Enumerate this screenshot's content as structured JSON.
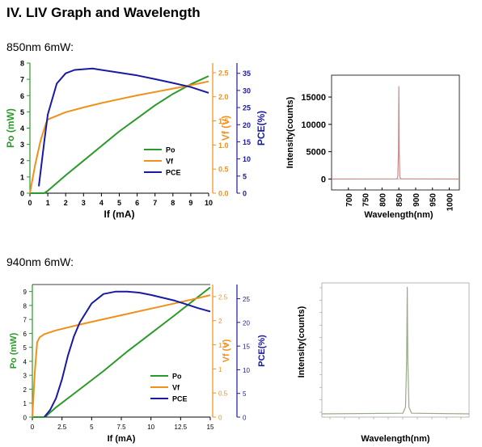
{
  "heading": "IV. LIV Graph and Wavelength",
  "sections": [
    {
      "subtitle": "850nm 6mW:"
    },
    {
      "subtitle": "940nm 6mW:"
    }
  ],
  "colors": {
    "po": "#2a9a2a",
    "vf": "#f0901a",
    "pce": "#1a1aa0",
    "spectrum": "#c98a8a",
    "spectrum2": "#9aa98a"
  },
  "chart_data": [
    {
      "type": "line",
      "xlabel": "If (mA)",
      "xlim": [
        0,
        10
      ],
      "xticks": [
        "0",
        "1",
        "2",
        "3",
        "4",
        "5",
        "6",
        "7",
        "8",
        "9",
        "10"
      ],
      "legend": [
        "Po",
        "Vf",
        "PCE"
      ],
      "legend_position": "center-right",
      "series": [
        {
          "name": "Po",
          "axis": "Po (mW)",
          "ylim": [
            0,
            8
          ],
          "ticks": [
            "0",
            "1",
            "2",
            "3",
            "4",
            "5",
            "6",
            "7",
            "8"
          ],
          "x": [
            0,
            0.8,
            1,
            2,
            3,
            4,
            5,
            6,
            7,
            8,
            9,
            10
          ],
          "values": [
            0,
            0,
            0.15,
            1.1,
            2.0,
            2.9,
            3.8,
            4.6,
            5.4,
            6.1,
            6.7,
            7.2
          ]
        },
        {
          "name": "Vf",
          "axis": "Vf (V)",
          "ylim": [
            0,
            2.7
          ],
          "ticks": [
            "0.0",
            "0.5",
            "1.0",
            "1.5",
            "2.0",
            "2.5"
          ],
          "x": [
            0,
            0.3,
            0.6,
            0.9,
            1,
            2,
            3,
            4,
            5,
            6,
            7,
            8,
            9,
            10
          ],
          "values": [
            0,
            0.6,
            1.1,
            1.45,
            1.53,
            1.68,
            1.78,
            1.87,
            1.95,
            2.03,
            2.1,
            2.17,
            2.24,
            2.32
          ]
        },
        {
          "name": "PCE",
          "axis": "PCE(%)",
          "ylim": [
            0,
            38
          ],
          "ticks": [
            "0",
            "5",
            "10",
            "15",
            "20",
            "25",
            "30",
            "35"
          ],
          "x": [
            0.5,
            0.8,
            1,
            1.5,
            2,
            2.5,
            3,
            3.5,
            4,
            5,
            6,
            7,
            8,
            9,
            10
          ],
          "values": [
            2,
            15,
            23,
            32,
            35,
            36,
            36.2,
            36.4,
            36,
            35.2,
            34.4,
            33.3,
            32.2,
            31,
            29.3
          ]
        }
      ]
    },
    {
      "type": "line",
      "xlabel": "Wavelength(nm)",
      "ylabel": "Intensity(counts)",
      "xlim": [
        650,
        1030
      ],
      "ylim": [
        -2000,
        19000
      ],
      "xticks": [
        "700",
        "750",
        "800",
        "850",
        "900",
        "950",
        "1000"
      ],
      "yticks": [
        "0",
        "5000",
        "10000",
        "15000"
      ],
      "peak": {
        "x": 850,
        "y": 17000
      }
    },
    {
      "type": "line",
      "xlabel": "If (mA)",
      "xlim": [
        0,
        15
      ],
      "xticks": [
        "0",
        "2.5",
        "5",
        "7.5",
        "10",
        "12.5",
        "15"
      ],
      "legend": [
        "Po",
        "Vf",
        "PCE"
      ],
      "legend_position": "center-right",
      "series": [
        {
          "name": "Po",
          "axis": "Po (mW)",
          "ylim": [
            0,
            9.5
          ],
          "ticks": [
            "0",
            "1",
            "2",
            "3",
            "4",
            "5",
            "6",
            "7",
            "8",
            "9"
          ],
          "x": [
            0,
            1,
            1.2,
            2,
            4,
            6,
            8,
            10,
            12,
            13.5,
            15
          ],
          "values": [
            0,
            0,
            0.1,
            0.7,
            2.0,
            3.3,
            4.7,
            6.0,
            7.3,
            8.3,
            9.3
          ]
        },
        {
          "name": "Vf",
          "axis": "Vf (V)",
          "ylim": [
            0,
            2.75
          ],
          "ticks": [
            "0",
            "0.5",
            "1",
            "1.5",
            "2",
            "2.5"
          ],
          "x": [
            0,
            0.2,
            0.4,
            0.6,
            1,
            2,
            4,
            6,
            8,
            10,
            12,
            14,
            15
          ],
          "values": [
            0,
            0.9,
            1.55,
            1.65,
            1.72,
            1.8,
            1.92,
            2.03,
            2.14,
            2.25,
            2.36,
            2.47,
            2.53
          ]
        },
        {
          "name": "PCE",
          "axis": "PCE(%)",
          "ylim": [
            0,
            28
          ],
          "ticks": [
            "0",
            "5",
            "10",
            "15",
            "20",
            "25"
          ],
          "x": [
            1,
            1.5,
            2,
            2.5,
            3,
            3.5,
            4,
            5,
            6,
            7,
            8,
            9,
            10,
            11,
            12,
            13,
            14,
            15
          ],
          "values": [
            0,
            1.5,
            4,
            8,
            13,
            17,
            20,
            24,
            26,
            26.5,
            26.5,
            26.3,
            25.8,
            25.2,
            24.6,
            23.8,
            23.0,
            22.3
          ]
        }
      ]
    },
    {
      "type": "line",
      "xlabel": "Wavelength(nm)",
      "ylabel": "Intensity(counts)",
      "xlim": [
        0,
        1
      ],
      "ylim": [
        0,
        1
      ],
      "peak": {
        "x": 0.58,
        "y": 0.97
      }
    }
  ]
}
